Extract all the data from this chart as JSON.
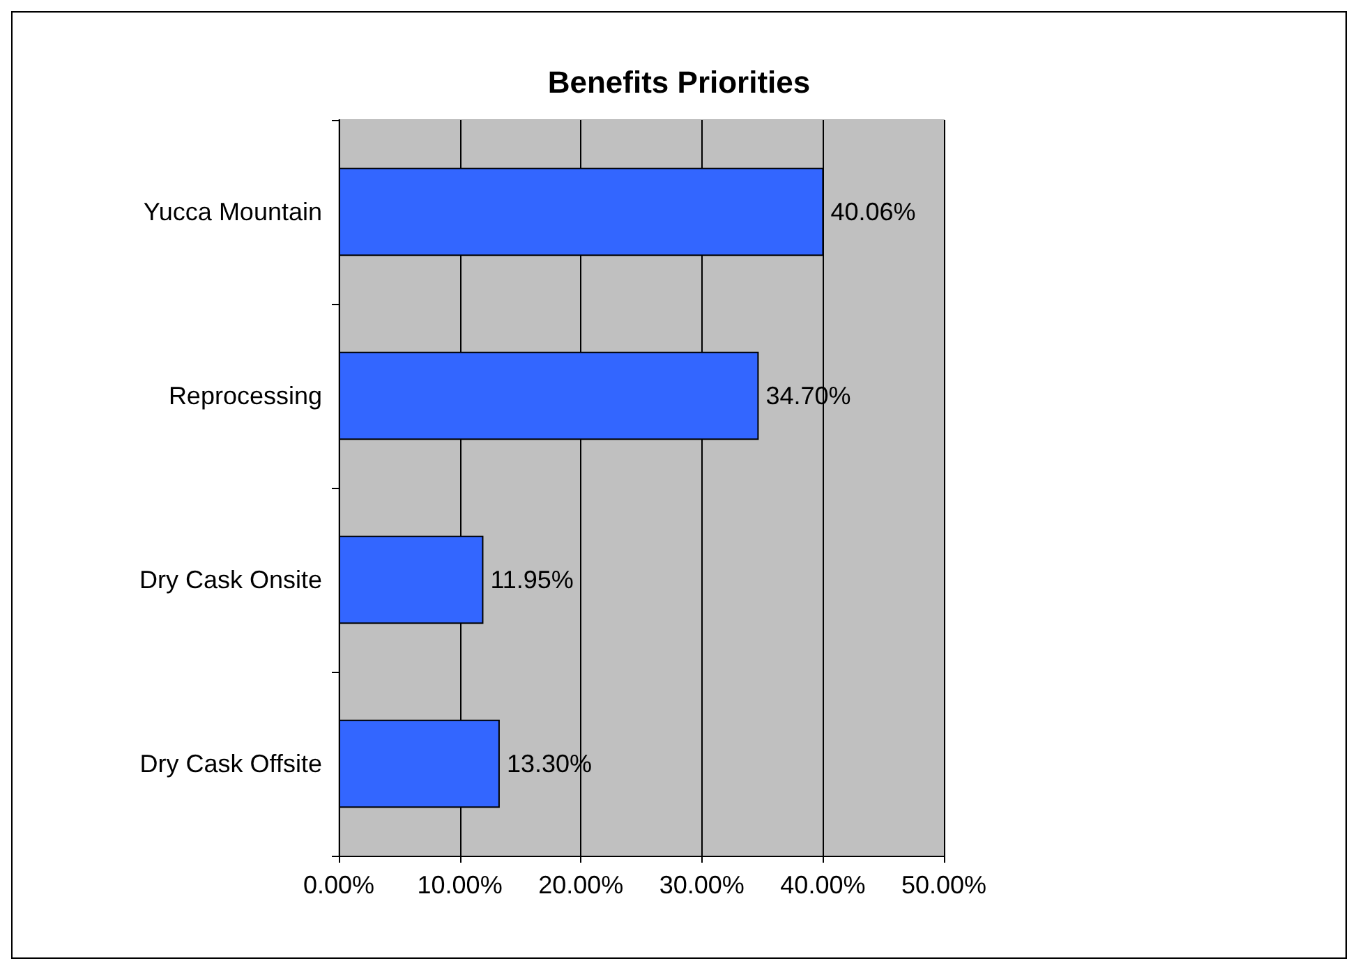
{
  "chart_data": {
    "type": "bar",
    "orientation": "horizontal",
    "title": "Benefits Priorities",
    "categories": [
      "Yucca Mountain",
      "Reprocessing",
      "Dry Cask Onsite",
      "Dry Cask Offsite"
    ],
    "values": [
      40.06,
      34.7,
      11.95,
      13.3
    ],
    "value_labels": [
      "40.06%",
      "34.70%",
      "11.95%",
      "13.30%"
    ],
    "color": "#3366ff",
    "xlim": [
      0,
      50
    ],
    "xticks": [
      {
        "value": 0,
        "label": "0.00%"
      },
      {
        "value": 10,
        "label": "10.00%"
      },
      {
        "value": 20,
        "label": "20.00%"
      },
      {
        "value": 30,
        "label": "30.00%"
      },
      {
        "value": 40,
        "label": "40.00%"
      },
      {
        "value": 50,
        "label": "50.00%"
      }
    ],
    "grid": "x"
  }
}
